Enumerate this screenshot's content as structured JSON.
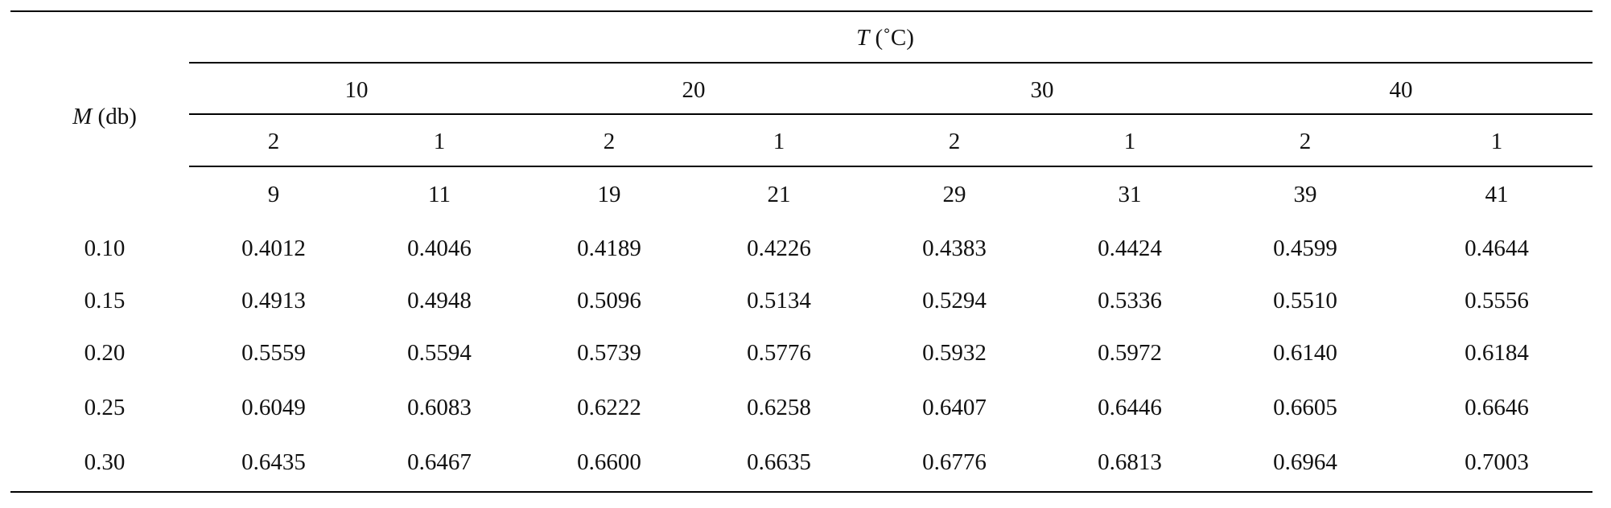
{
  "table": {
    "row_header": {
      "symbol": "M",
      "unit": "(db)"
    },
    "col_header": {
      "symbol": "T",
      "unit": "(˚C)"
    },
    "temperatures": [
      "10",
      "20",
      "30",
      "40"
    ],
    "sub_headers": [
      "2",
      "1",
      "2",
      "1",
      "2",
      "1",
      "2",
      "1"
    ],
    "third_headers": [
      "9",
      "11",
      "19",
      "21",
      "29",
      "31",
      "39",
      "41"
    ],
    "rows": [
      {
        "m": "0.10",
        "values": [
          "0.4012",
          "0.4046",
          "0.4189",
          "0.4226",
          "0.4383",
          "0.4424",
          "0.4599",
          "0.4644"
        ]
      },
      {
        "m": "0.15",
        "values": [
          "0.4913",
          "0.4948",
          "0.5096",
          "0.5134",
          "0.5294",
          "0.5336",
          "0.5510",
          "0.5556"
        ]
      },
      {
        "m": "0.20",
        "values": [
          "0.5559",
          "0.5594",
          "0.5739",
          "0.5776",
          "0.5932",
          "0.5972",
          "0.6140",
          "0.6184"
        ]
      },
      {
        "m": "0.25",
        "values": [
          "0.6049",
          "0.6083",
          "0.6222",
          "0.6258",
          "0.6407",
          "0.6446",
          "0.6605",
          "0.6646"
        ]
      },
      {
        "m": "0.30",
        "values": [
          "0.6435",
          "0.6467",
          "0.6600",
          "0.6635",
          "0.6776",
          "0.6813",
          "0.6964",
          "0.7003"
        ]
      }
    ]
  }
}
